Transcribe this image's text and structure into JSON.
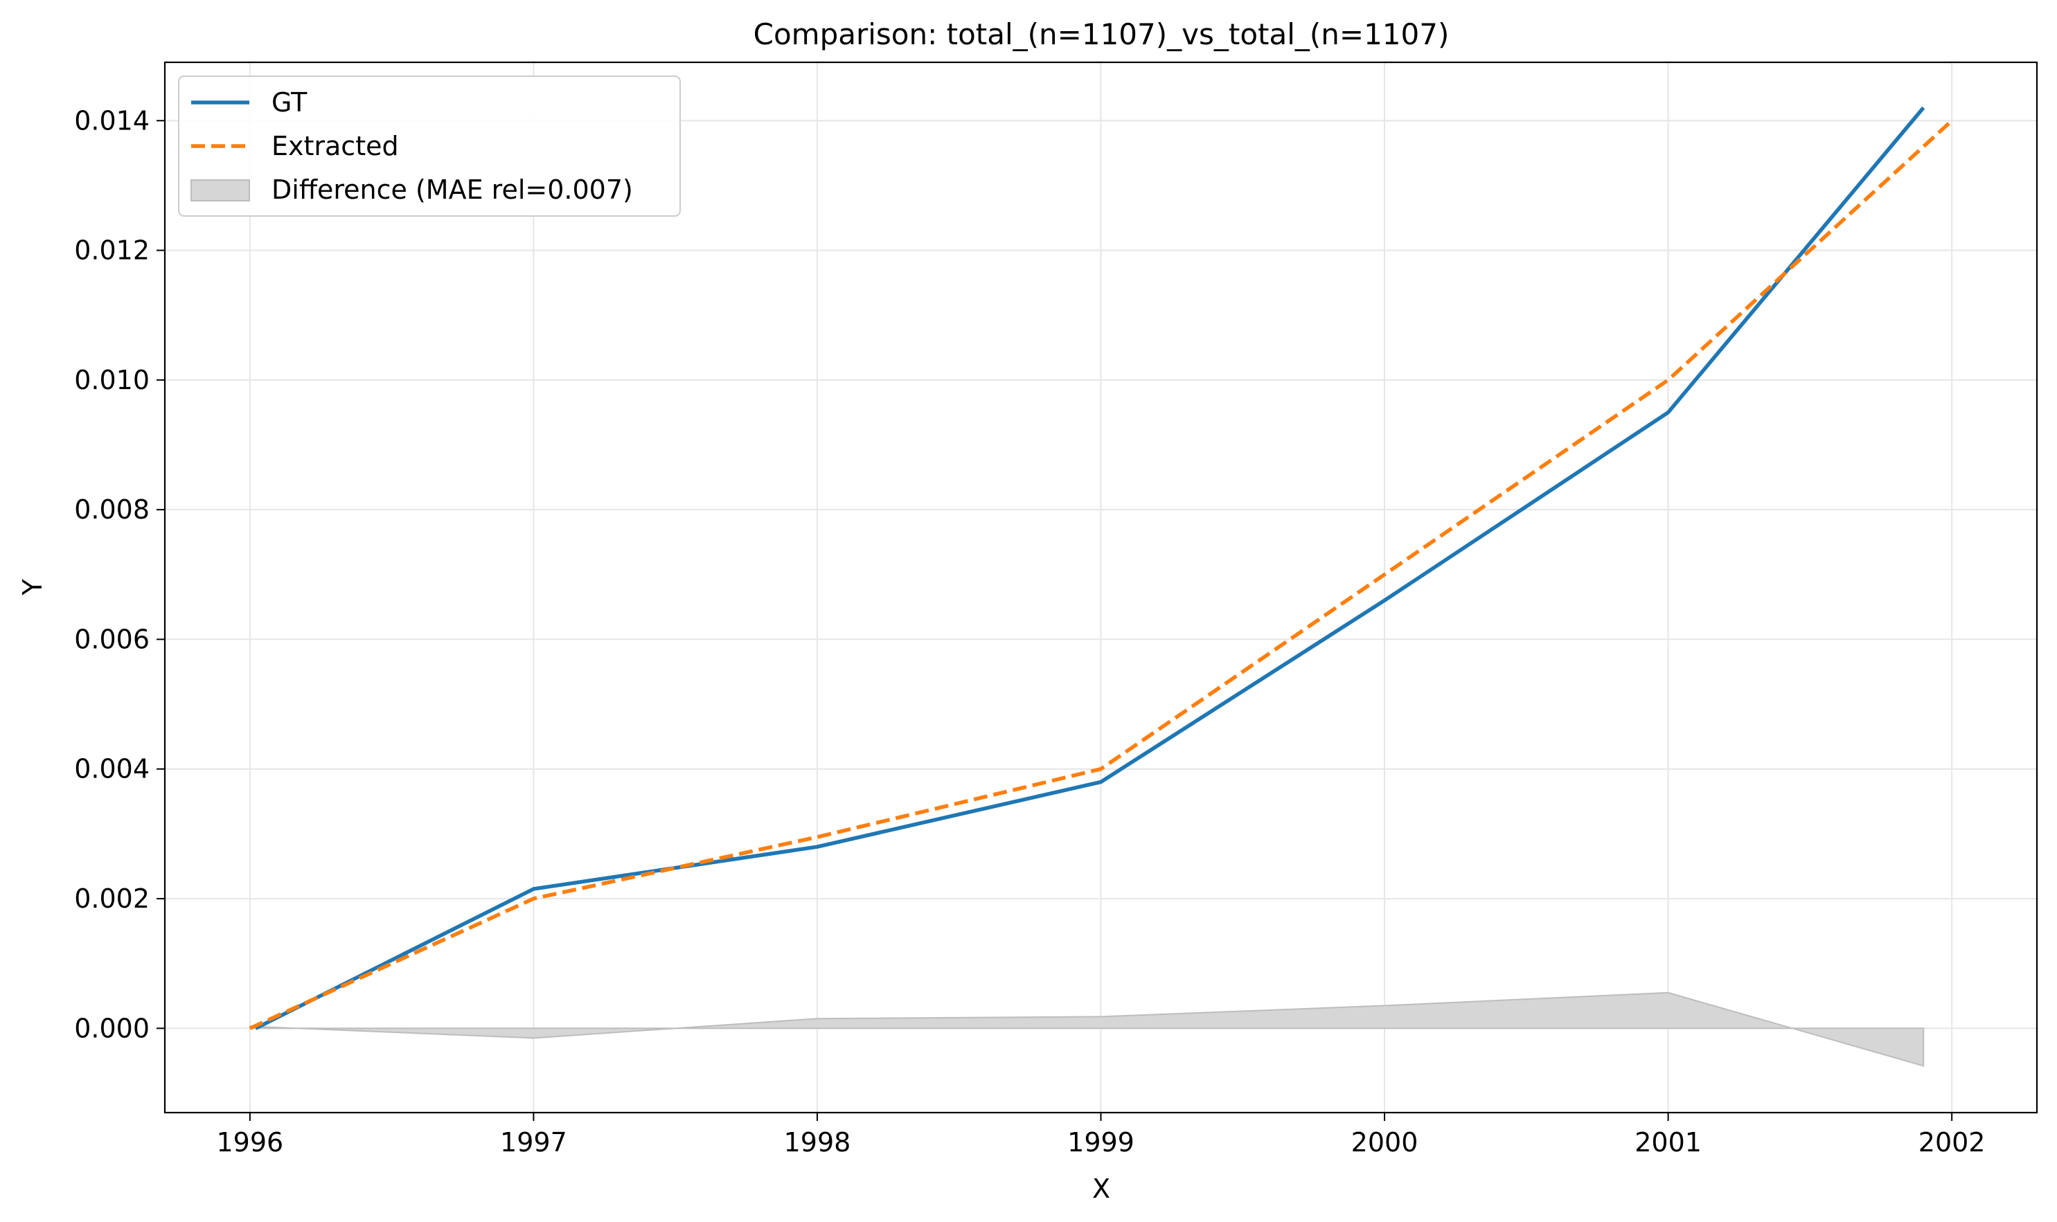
{
  "chart_data": {
    "type": "line",
    "title": "Comparison: total_(n=1107)_vs_total_(n=1107)",
    "xlabel": "X",
    "ylabel": "Y",
    "xlim": [
      1995.7,
      2002.3
    ],
    "ylim": [
      -0.0013,
      0.0149
    ],
    "xticks": [
      1996,
      1997,
      1998,
      1999,
      2000,
      2001,
      2002
    ],
    "xtick_labels": [
      "1996",
      "1997",
      "1998",
      "1999",
      "2000",
      "2001",
      "2002"
    ],
    "yticks": [
      0.0,
      0.002,
      0.004,
      0.006,
      0.008,
      0.01,
      0.012,
      0.014
    ],
    "ytick_labels": [
      "0.000",
      "0.002",
      "0.004",
      "0.006",
      "0.008",
      "0.010",
      "0.012",
      "0.014"
    ],
    "grid": true,
    "legend_position": "top-left",
    "series": [
      {
        "name": "GT",
        "color": "#1f77b4",
        "style": "solid",
        "x": [
          1996.02,
          1997.0,
          1998.0,
          1999.0,
          2000.0,
          2001.0,
          2001.9
        ],
        "y": [
          0.0,
          0.00215,
          0.0028,
          0.0038,
          0.0066,
          0.0095,
          0.0142
        ]
      },
      {
        "name": "Extracted",
        "color": "#ff7f0e",
        "style": "dashed",
        "x": [
          1996.0,
          1997.0,
          1998.0,
          1999.0,
          2000.0,
          2001.0,
          2002.0
        ],
        "y": [
          0.0,
          0.002,
          0.00295,
          0.004,
          0.007,
          0.01,
          0.014
        ]
      }
    ],
    "difference": {
      "name": "Difference (MAE rel=0.007)",
      "color": "#d6d6d6",
      "x": [
        1996.0,
        1997.0,
        1998.0,
        1999.0,
        2000.0,
        2001.0,
        2001.9
      ],
      "y": [
        3e-05,
        -0.00015,
        0.00015,
        0.00018,
        0.00035,
        0.00055,
        -0.00058
      ]
    }
  }
}
